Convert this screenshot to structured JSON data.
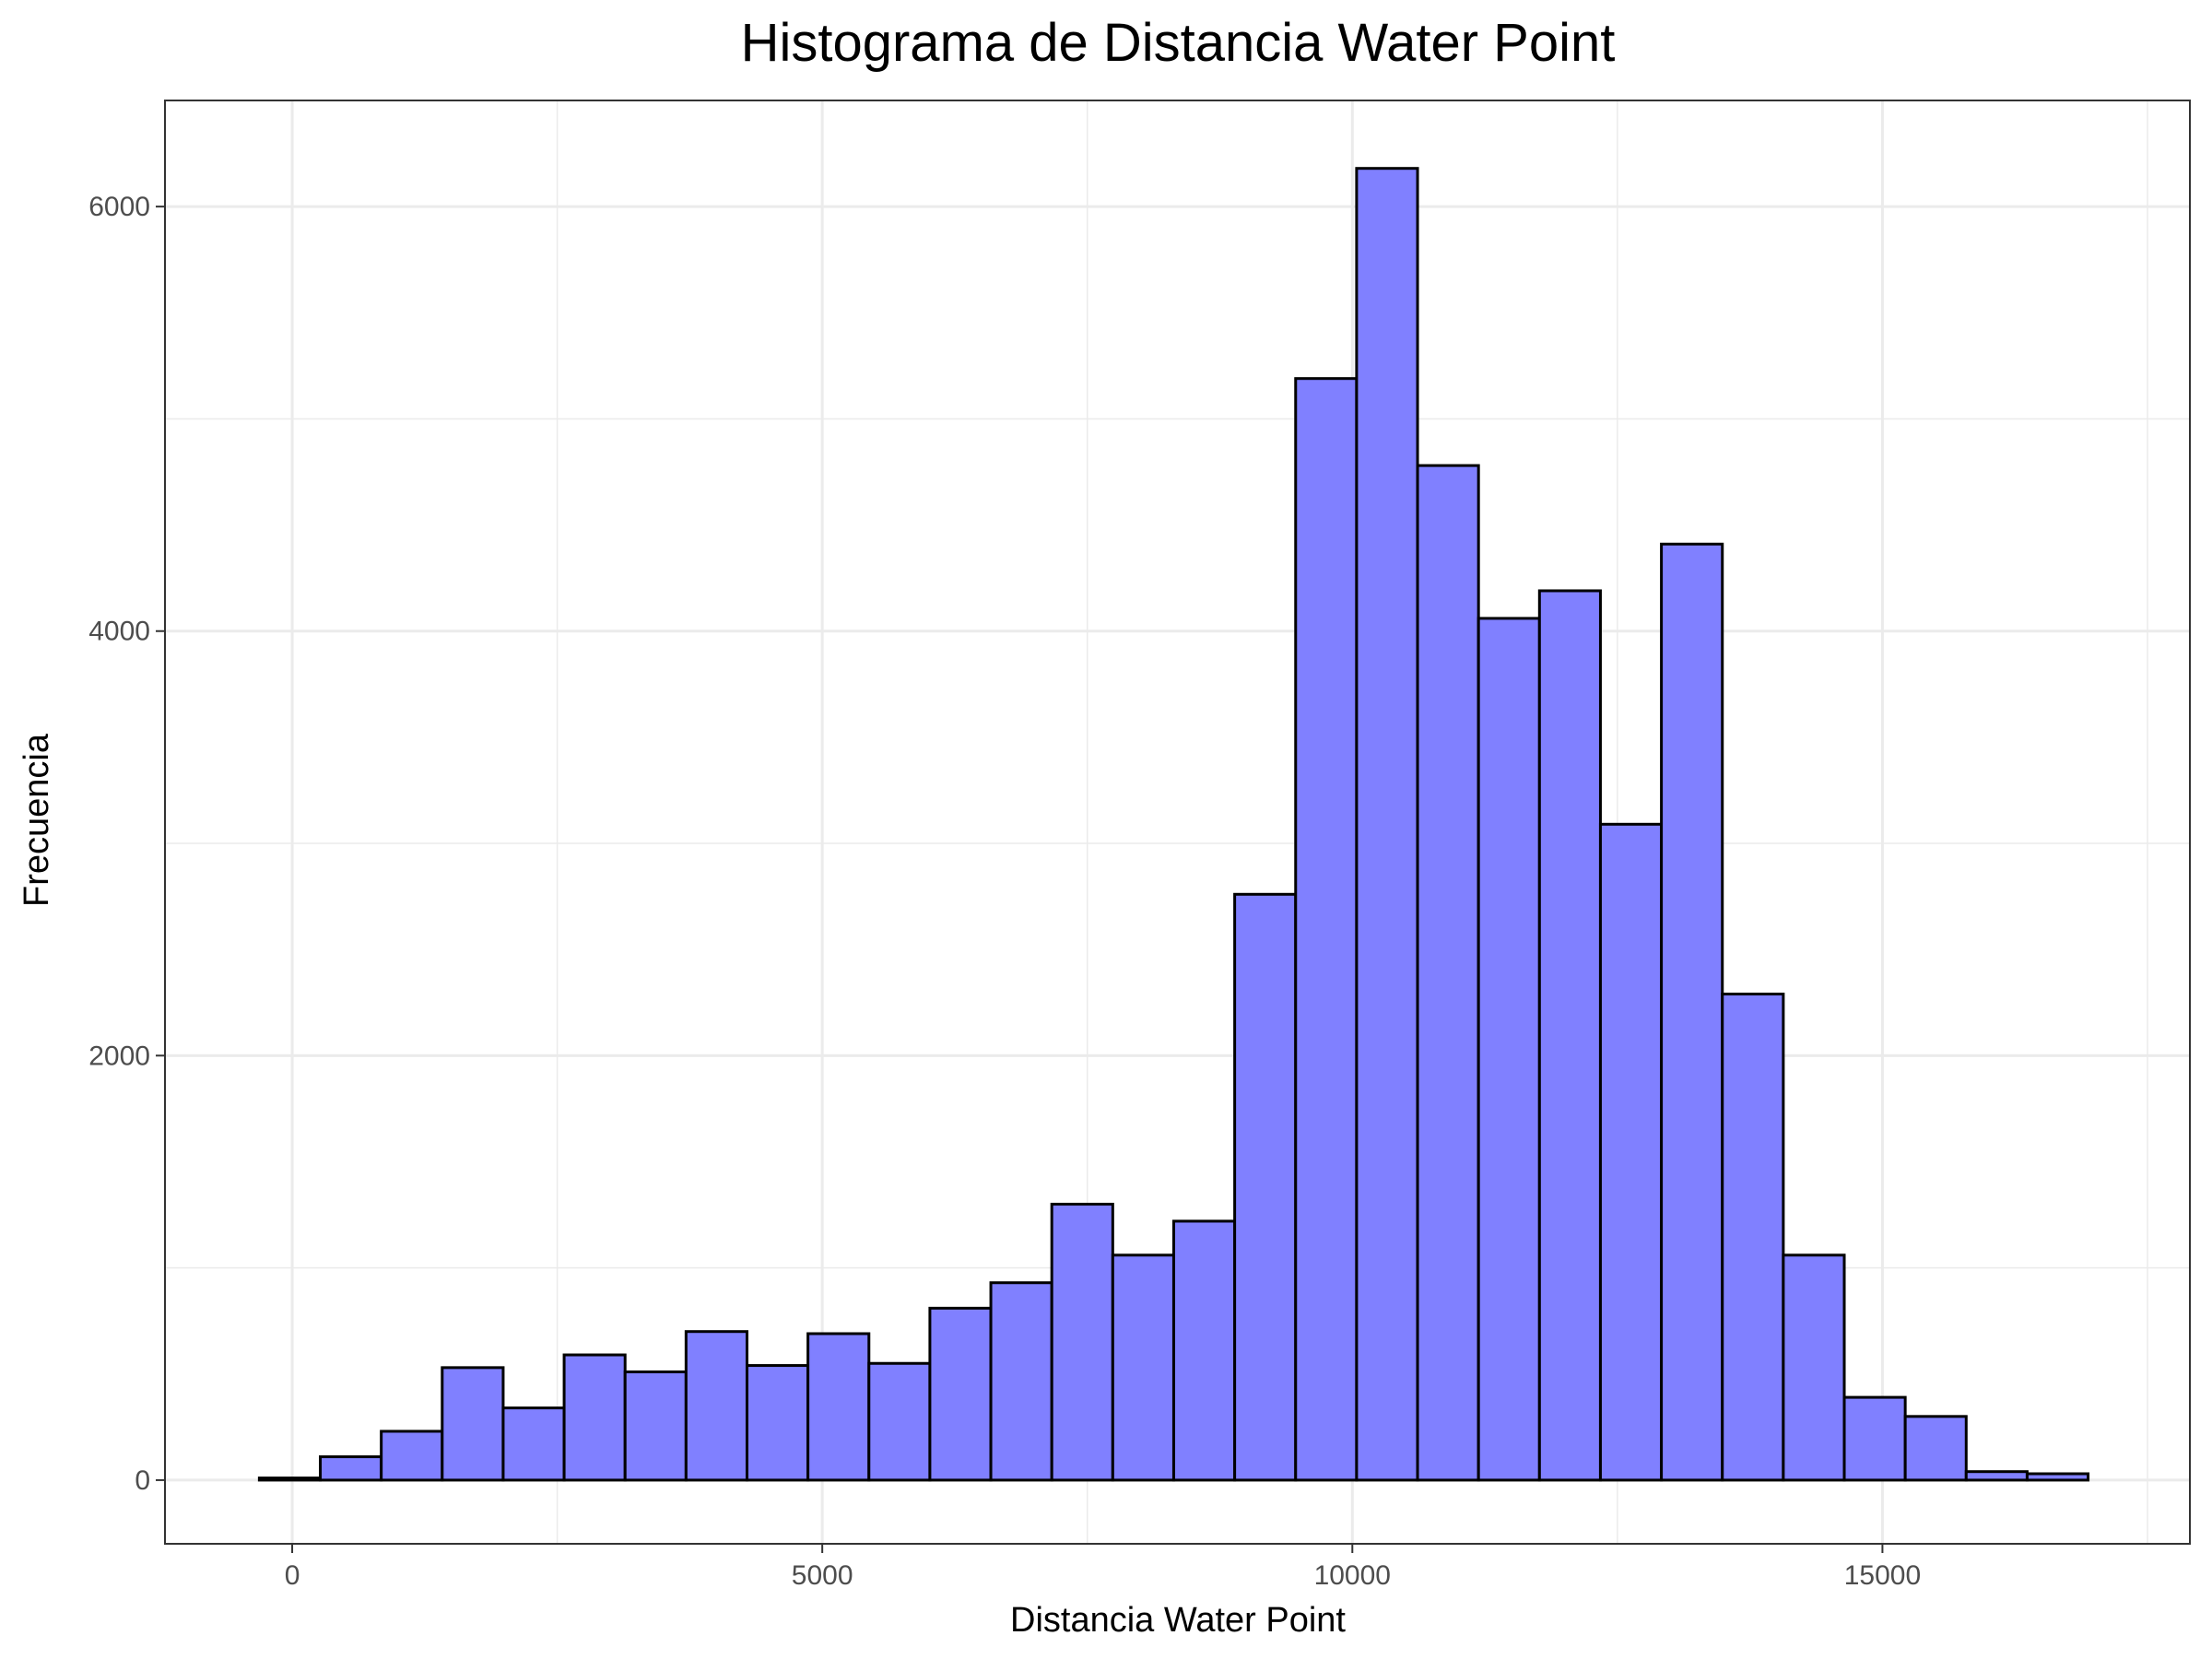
{
  "chart_data": {
    "type": "bar",
    "title": "Histograma de Distancia Water Point",
    "xlabel": "Distancia Water Point",
    "ylabel": "Frecuencia",
    "xlim": [
      -1200,
      17900
    ],
    "ylim": [
      -300,
      6500
    ],
    "x_ticks": [
      0,
      5000,
      10000,
      15000
    ],
    "y_ticks": [
      0,
      2000,
      4000,
      6000
    ],
    "x_tick_labels": [
      "0",
      "5000",
      "10000",
      "15000"
    ],
    "y_tick_labels": [
      "0",
      "2000",
      "4000",
      "6000"
    ],
    "x_minor_ticks": [
      2500,
      7500,
      12500,
      17500
    ],
    "y_minor_ticks": [
      1000,
      3000,
      5000
    ],
    "grid": true,
    "bin_width": 575,
    "bin_start": -310,
    "values": [
      10,
      110,
      230,
      530,
      340,
      590,
      510,
      700,
      540,
      690,
      550,
      810,
      930,
      1300,
      1060,
      1220,
      2760,
      5190,
      6180,
      4780,
      4060,
      4190,
      3090,
      4410,
      2290,
      1060,
      390,
      300,
      40,
      30
    ],
    "colors": {
      "bar_fill": "#8080ff",
      "bar_stroke": "#000000",
      "grid": "#ebebeb",
      "panel_border": "#333333",
      "tick_text": "#4d4d4d"
    }
  }
}
